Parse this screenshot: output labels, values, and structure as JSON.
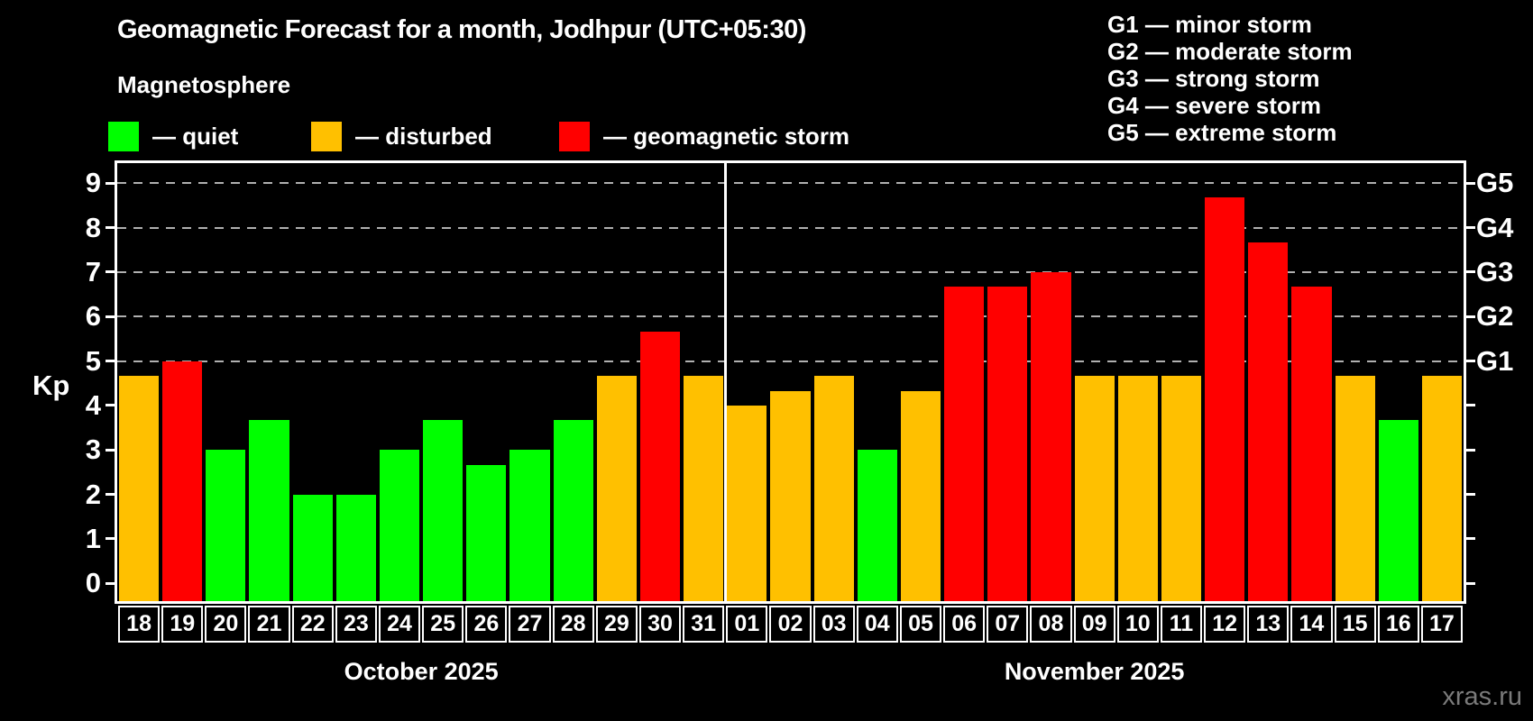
{
  "subtitle": "Magnetosphere",
  "watermark": "xras.ru",
  "colors": {
    "quiet": "#00FF00",
    "disturbed": "#FFC000",
    "storm": "#FF0000",
    "background": "#000000",
    "text": "#FFFFFF",
    "grid": "#B0B0B0",
    "frame": "#FFFFFF",
    "watermark": "#7A7A7A"
  },
  "legend": {
    "items": [
      {
        "key": "quiet",
        "label": "— quiet"
      },
      {
        "key": "disturbed",
        "label": "— disturbed"
      },
      {
        "key": "storm",
        "label": "— geomagnetic storm"
      }
    ]
  },
  "storm_scale": [
    {
      "label": "G1 — minor storm"
    },
    {
      "label": "G2 — moderate storm"
    },
    {
      "label": "G3 — strong storm"
    },
    {
      "label": "G4 — severe storm"
    },
    {
      "label": "G5 — extreme storm"
    }
  ],
  "chart_data": {
    "type": "bar",
    "title": "Geomagnetic Forecast for a month, Jodhpur (UTC+05:30)",
    "ylabel": "Kp",
    "ylim": [
      0,
      9
    ],
    "y_ticks": [
      0,
      1,
      2,
      3,
      4,
      5,
      6,
      7,
      8,
      9
    ],
    "grid_levels": [
      5,
      6,
      7,
      8,
      9
    ],
    "grid_style": "dashed horizontal lines at storm levels only",
    "right_axis_labels": [
      {
        "value": 5,
        "label": "G1"
      },
      {
        "value": 6,
        "label": "G2"
      },
      {
        "value": 7,
        "label": "G3"
      },
      {
        "value": 8,
        "label": "G4"
      },
      {
        "value": 9,
        "label": "G5"
      }
    ],
    "months": [
      {
        "label": "October 2025",
        "days": [
          "18",
          "19",
          "20",
          "21",
          "22",
          "23",
          "24",
          "25",
          "26",
          "27",
          "28",
          "29",
          "30",
          "31"
        ],
        "values": [
          4.67,
          5.0,
          3.0,
          3.67,
          2.0,
          2.0,
          3.0,
          3.67,
          2.67,
          3.0,
          3.67,
          4.67,
          5.67,
          4.67
        ],
        "status": [
          "disturbed",
          "storm",
          "quiet",
          "quiet",
          "quiet",
          "quiet",
          "quiet",
          "quiet",
          "quiet",
          "quiet",
          "quiet",
          "disturbed",
          "storm",
          "disturbed"
        ]
      },
      {
        "label": "November 2025",
        "days": [
          "01",
          "02",
          "03",
          "04",
          "05",
          "06",
          "07",
          "08",
          "09",
          "10",
          "11",
          "12",
          "13",
          "14",
          "15",
          "16",
          "17"
        ],
        "values": [
          4.0,
          4.33,
          4.67,
          3.0,
          4.33,
          6.67,
          6.67,
          7.0,
          4.67,
          4.67,
          4.67,
          8.67,
          7.67,
          6.67,
          4.67,
          3.67,
          4.67
        ],
        "status": [
          "disturbed",
          "disturbed",
          "disturbed",
          "quiet",
          "disturbed",
          "storm",
          "storm",
          "storm",
          "disturbed",
          "disturbed",
          "disturbed",
          "storm",
          "storm",
          "storm",
          "disturbed",
          "quiet",
          "disturbed"
        ]
      }
    ]
  }
}
